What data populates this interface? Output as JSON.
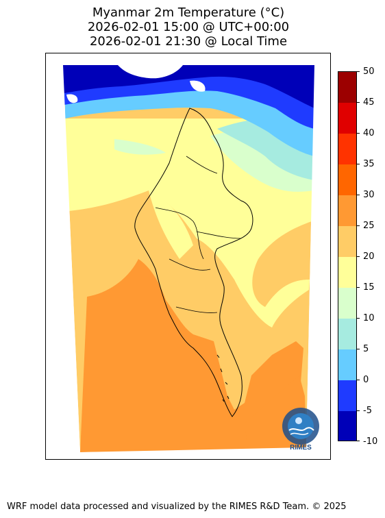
{
  "title": {
    "line1": "Myanmar 2m Temperature (°C)",
    "line2": "2026-02-01 15:00 @ UTC+00:00",
    "line3": "2026-02-01 21:30 @ Local Time"
  },
  "colorbar": {
    "levels": [
      "50",
      "45",
      "40",
      "35",
      "30",
      "25",
      "20",
      "15",
      "10",
      "5",
      "0",
      "-5",
      "-10"
    ],
    "colors_top_to_bottom": [
      "#9c0000",
      "#e00000",
      "#ff3300",
      "#ff6600",
      "#ff9933",
      "#ffcc66",
      "#ffff99",
      "#d9ffcc",
      "#a6ebe0",
      "#66ccff",
      "#1f3bff",
      "#0000b8"
    ]
  },
  "map": {
    "palette": {
      "deep_cold": "#0000b8",
      "cold": "#1f3bff",
      "cool": "#66ccff",
      "mild": "#a6ebe0",
      "light": "#d9ffcc",
      "pale": "#ffff99",
      "warm": "#ffcc66",
      "hot": "#ff9933",
      "border": "#000000"
    }
  },
  "logo": {
    "text": "RIMES",
    "icon": "rimes-globe-logo-icon"
  },
  "footer": {
    "text": "WRF model data processed and visualized by the RIMES R&D Team. © 2025"
  }
}
